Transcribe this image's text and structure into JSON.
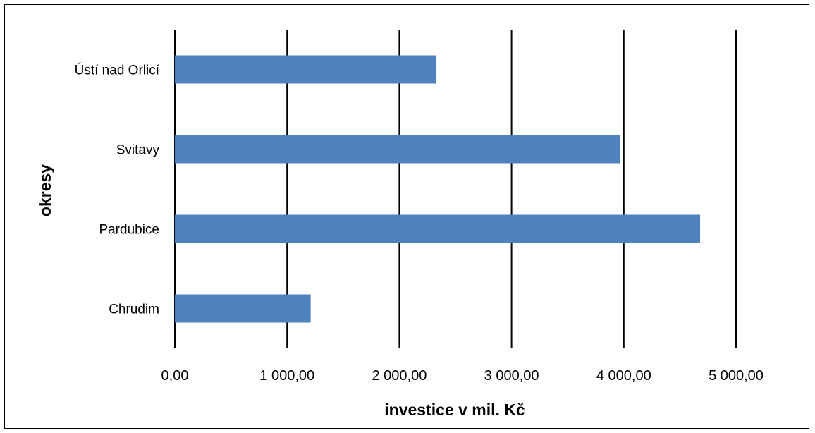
{
  "chart_data": {
    "type": "bar",
    "orientation": "horizontal",
    "title": "",
    "xlabel": "investice v mil. Kč",
    "ylabel": "okresy",
    "categories": [
      "Chrudim",
      "Pardubice",
      "Svitavy ",
      "Ústí nad Orlicí"
    ],
    "values": [
      1210,
      4680,
      3970,
      2330
    ],
    "xlim": [
      0,
      5000
    ],
    "xticks": [
      0,
      1000,
      2000,
      3000,
      4000,
      5000
    ],
    "xtick_labels": [
      "0,00",
      "1 000,00",
      "2 000,00",
      "3 000,00",
      "4 000,00",
      "5 000,00"
    ],
    "grid": "vertical major gridlines",
    "legend": "none",
    "colors": {
      "bar": "#4f81bd",
      "gridline": "#000000"
    }
  }
}
